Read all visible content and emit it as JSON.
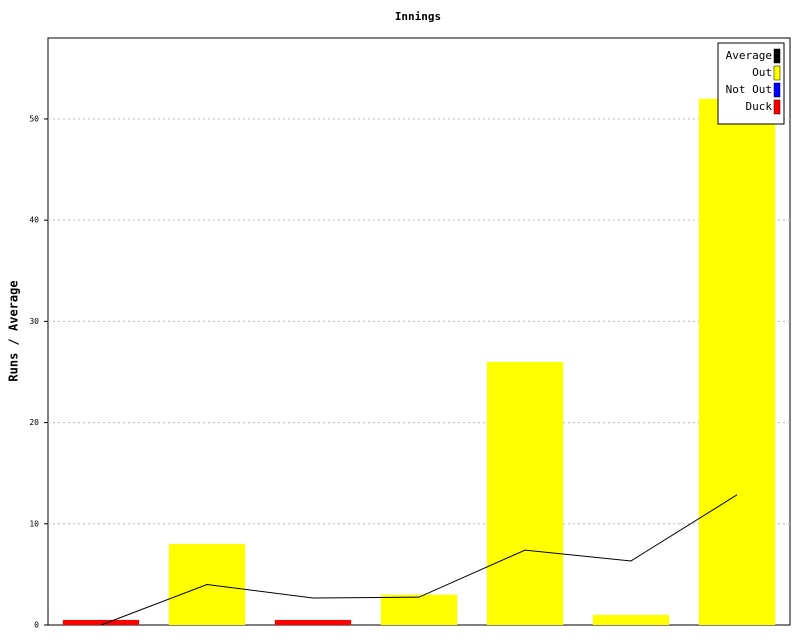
{
  "chart_data": {
    "type": "bar",
    "title": "Innings",
    "y_label": "Runs / Average",
    "categories": [
      null,
      null,
      null,
      null,
      null,
      null,
      null
    ],
    "series": [
      {
        "name": "Average",
        "color": "#000000",
        "kind": "line",
        "values": [
          0,
          4,
          2.67,
          2.75,
          7.4,
          6.33,
          12.86
        ]
      },
      {
        "name": "Out",
        "color": "#ffff00",
        "values": [
          null,
          8,
          null,
          3,
          26,
          1,
          52
        ]
      },
      {
        "name": "Not Out",
        "color": "#0000ff",
        "values": [
          null,
          null,
          null,
          null,
          null,
          null,
          null
        ]
      },
      {
        "name": "Duck",
        "color": "#ff0000",
        "values": [
          0.5,
          null,
          0.5,
          null,
          null,
          null,
          null
        ]
      }
    ],
    "ylim": [
      0,
      58
    ],
    "yticks": [
      0,
      10,
      20,
      30,
      40,
      50
    ],
    "grid": true,
    "legend": "top-right"
  }
}
